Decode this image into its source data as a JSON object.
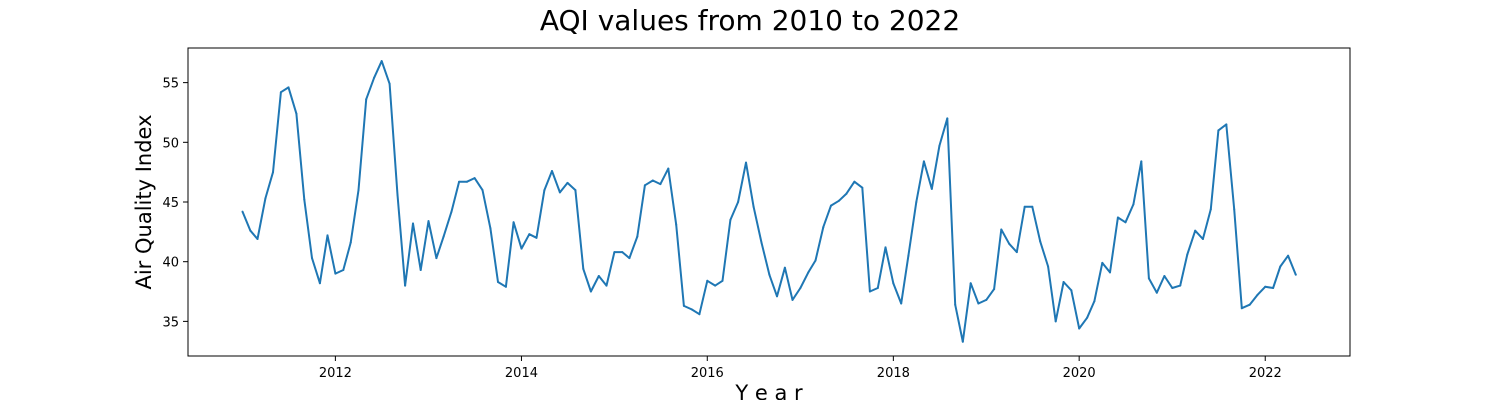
{
  "chart_data": {
    "type": "line",
    "title": "AQI values from 2010 to 2022",
    "xlabel": "Y e a r",
    "ylabel": "Air Quality Index",
    "xlim": [
      "2010-06-01",
      "2022-11-30"
    ],
    "ylim": [
      32.1,
      57.9
    ],
    "x_ticks": [
      "2012",
      "2014",
      "2016",
      "2018",
      "2020",
      "2022"
    ],
    "y_ticks": [
      "35",
      "40",
      "45",
      "50",
      "55"
    ],
    "grid": false,
    "color": "#1f77b4",
    "series": [
      {
        "x": [
          "2011-01",
          "2011-02",
          "2011-03",
          "2011-04",
          "2011-05",
          "2011-06",
          "2011-07",
          "2011-08",
          "2011-09",
          "2011-10",
          "2011-11",
          "2011-12",
          "2012-01",
          "2012-02",
          "2012-03",
          "2012-04",
          "2012-05",
          "2012-06",
          "2012-07",
          "2012-08",
          "2012-09",
          "2012-10",
          "2012-11",
          "2012-12",
          "2013-01",
          "2013-02",
          "2013-03",
          "2013-04",
          "2013-05",
          "2013-06",
          "2013-07",
          "2013-08",
          "2013-09",
          "2013-10",
          "2013-11",
          "2013-12",
          "2014-01",
          "2014-02",
          "2014-03",
          "2014-04",
          "2014-05",
          "2014-06",
          "2014-07",
          "2014-08",
          "2014-09",
          "2014-10",
          "2014-11",
          "2014-12",
          "2015-01",
          "2015-02",
          "2015-03",
          "2015-04",
          "2015-05",
          "2015-06",
          "2015-07",
          "2015-08",
          "2015-09",
          "2015-10",
          "2015-11",
          "2015-12",
          "2016-01",
          "2016-02",
          "2016-03",
          "2016-04",
          "2016-05",
          "2016-06",
          "2016-07",
          "2016-08",
          "2016-09",
          "2016-10",
          "2016-11",
          "2016-12",
          "2017-01",
          "2017-02",
          "2017-03",
          "2017-04",
          "2017-05",
          "2017-06",
          "2017-07",
          "2017-08",
          "2017-09",
          "2017-10",
          "2017-11",
          "2017-12",
          "2018-01",
          "2018-02",
          "2018-03",
          "2018-04",
          "2018-05",
          "2018-06",
          "2018-07",
          "2018-08",
          "2018-09",
          "2018-10",
          "2018-11",
          "2018-12",
          "2019-01",
          "2019-02",
          "2019-03",
          "2019-04",
          "2019-05",
          "2019-06",
          "2019-07",
          "2019-08",
          "2019-09",
          "2019-10",
          "2019-11",
          "2019-12",
          "2020-01",
          "2020-02",
          "2020-03",
          "2020-04",
          "2020-05",
          "2020-06",
          "2020-07",
          "2020-08",
          "2020-09",
          "2020-10",
          "2020-11",
          "2020-12",
          "2021-01",
          "2021-02",
          "2021-03",
          "2021-04",
          "2021-05",
          "2021-06",
          "2021-07",
          "2021-08",
          "2021-09",
          "2021-10",
          "2021-11",
          "2021-12",
          "2022-01",
          "2022-02",
          "2022-03",
          "2022-04",
          "2022-05"
        ],
        "values": [
          44.2,
          42.6,
          41.9,
          45.3,
          47.5,
          54.2,
          54.6,
          52.4,
          45.2,
          40.3,
          38.2,
          42.2,
          39.0,
          39.3,
          41.6,
          46.0,
          53.6,
          55.4,
          56.8,
          54.9,
          45.6,
          38.0,
          43.2,
          39.3,
          43.4,
          40.3,
          42.1,
          44.2,
          46.7,
          46.7,
          47.0,
          46.0,
          42.8,
          38.3,
          37.9,
          43.3,
          41.1,
          42.3,
          42.0,
          46.0,
          47.6,
          45.8,
          46.6,
          46.0,
          39.4,
          37.5,
          38.8,
          38.0,
          40.8,
          40.8,
          40.3,
          42.1,
          46.4,
          46.8,
          46.5,
          47.8,
          43.1,
          36.3,
          36.0,
          35.6,
          38.4,
          38.0,
          38.4,
          43.5,
          45.0,
          48.3,
          44.6,
          41.6,
          38.9,
          37.1,
          39.5,
          36.8,
          37.8,
          39.1,
          40.1,
          42.9,
          44.7,
          45.1,
          45.7,
          46.7,
          46.2,
          37.5,
          37.8,
          41.2,
          38.2,
          36.5,
          40.5,
          45.0,
          48.4,
          46.1,
          49.7,
          52.0,
          36.4,
          33.3,
          38.2,
          36.5,
          36.8,
          37.7,
          42.7,
          41.5,
          40.8,
          44.6,
          44.6,
          41.7,
          39.6,
          35.0,
          38.3,
          37.6,
          34.4,
          35.3,
          36.7,
          39.9,
          39.1,
          43.7,
          43.3,
          44.8,
          48.4,
          38.6,
          37.4,
          38.8,
          37.8,
          38.0,
          40.6,
          42.6,
          41.9,
          44.4,
          51.0,
          51.5,
          44.4,
          36.1,
          36.4,
          37.2,
          37.9,
          37.8,
          39.6,
          40.5,
          38.9
        ]
      }
    ]
  }
}
